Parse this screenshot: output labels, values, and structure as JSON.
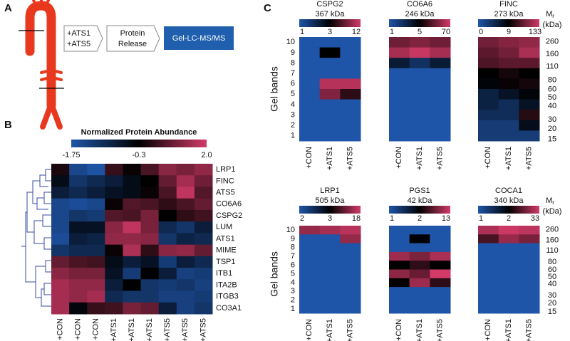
{
  "panel_labels": [
    "A",
    "B",
    "C"
  ],
  "panel_a": {
    "treatment": [
      "+ATS1",
      "+ATS5"
    ],
    "step": [
      "Protein",
      "Release"
    ],
    "method": "Gel-LC-MS/MS"
  },
  "panel_b": {
    "title": "Normalized Protein Abundance",
    "ticks": [
      -1.75,
      -0.3,
      {
        "value": 2,
        "label": "2.0"
      }
    ],
    "rows": [
      "LRP1",
      "FINC",
      "ATS5",
      "CO6A6",
      "CSPG2",
      "LUM",
      "ATS1",
      "MIME",
      "TSP1",
      "ITB1",
      "ITA2B",
      "ITGB3",
      "CO3A1"
    ],
    "columns": [
      "+CON",
      "+CON",
      "+CON",
      "+ATS1",
      "+ATS1",
      "+ATS1",
      "+ATS5",
      "+ATS5",
      "+ATS5"
    ],
    "values": [
      [
        0,
        -1.5,
        -1.7,
        0.3,
        -0.2,
        0.5,
        1.2,
        1.0,
        1.3
      ],
      [
        -0.5,
        -1.2,
        -1.0,
        -0.8,
        -0.5,
        -0.3,
        0.8,
        1.5,
        0.9
      ],
      [
        -0.8,
        -1.0,
        -0.8,
        -0.6,
        -0.5,
        -0.2,
        0.5,
        1.8,
        0.6
      ],
      [
        -1.5,
        -1.6,
        -1.5,
        -0.2,
        0.6,
        0.5,
        0.2,
        0.5,
        0.8
      ],
      [
        -1.5,
        -1.2,
        -1.3,
        0.6,
        0.5,
        1.0,
        -0.3,
        0.2,
        0.4
      ],
      [
        -1.5,
        -0.6,
        -0.6,
        1.2,
        1.8,
        1.0,
        -1.0,
        -1.2,
        -0.8
      ],
      [
        -1.6,
        -0.8,
        -0.9,
        1.3,
        1.3,
        1.2,
        -1.2,
        -0.9,
        -1.0
      ],
      [
        -1.2,
        -1.0,
        -1.0,
        -0.2,
        1.6,
        0.2,
        1.2,
        1.3,
        0.8
      ],
      [
        0.8,
        0.5,
        0.4,
        -0.5,
        -0.8,
        -0.6,
        -1.3,
        -0.8,
        -1.0
      ],
      [
        1.2,
        1.0,
        1.0,
        -0.6,
        -1.3,
        -0.3,
        -0.8,
        -1.4,
        -1.3
      ],
      [
        1.5,
        1.3,
        1.3,
        -0.8,
        -0.3,
        -1.2,
        -1.3,
        -1.2,
        -1.4
      ],
      [
        1.5,
        1.3,
        1.5,
        -1.0,
        -1.2,
        -1.2,
        -1.4,
        -1.4,
        -1.3
      ],
      [
        1.5,
        -0.4,
        0.3,
        0.4,
        1.0,
        0.8,
        -0.8,
        -1.4,
        -1.2
      ]
    ]
  },
  "panel_c": {
    "y_label": "Gel bands",
    "bands": [
      10,
      9,
      8,
      7,
      6,
      5,
      4,
      3,
      2,
      1
    ],
    "mr_label": "M",
    "mr_sub": "r",
    "mr_unit": "(kDa)",
    "mr": [
      260,
      160,
      110,
      80,
      60,
      50,
      40,
      30,
      20,
      15
    ],
    "columns": [
      "+CON",
      "+ATS1",
      "+ATS5"
    ],
    "proteins": [
      {
        "name": "CSPG2",
        "mass": "367 kDa",
        "ticks": [
          1,
          3,
          12
        ],
        "values": [
          [
            1,
            1,
            1
          ],
          [
            1,
            3,
            1
          ],
          [
            1,
            1,
            1
          ],
          [
            1,
            1,
            1
          ],
          [
            1,
            10,
            10
          ],
          [
            1,
            7,
            4
          ],
          [
            1,
            1,
            1
          ],
          [
            1,
            1,
            1
          ],
          [
            1,
            1,
            1
          ],
          [
            1,
            1,
            1
          ]
        ]
      },
      {
        "name": "CO6A6",
        "mass": "246 kDa",
        "ticks": [
          1,
          5,
          70
        ],
        "values": [
          [
            20,
            25,
            20
          ],
          [
            40,
            60,
            40
          ],
          [
            3,
            2,
            3
          ],
          [
            1,
            1,
            1
          ],
          [
            1,
            1,
            1
          ],
          [
            1,
            1,
            1
          ],
          [
            1,
            1,
            1
          ],
          [
            1,
            1,
            1
          ],
          [
            1,
            1,
            1
          ],
          [
            1,
            1,
            1
          ]
        ]
      },
      {
        "name": "FINC",
        "mass": "273 kDa",
        "ticks": [
          0,
          9,
          133
        ],
        "values": [
          [
            40,
            50,
            60
          ],
          [
            30,
            40,
            80
          ],
          [
            25,
            30,
            30
          ],
          [
            9,
            12,
            9
          ],
          [
            8,
            10,
            12
          ],
          [
            3,
            5,
            8
          ],
          [
            3,
            2,
            5
          ],
          [
            2,
            2,
            15
          ],
          [
            1,
            1,
            6
          ],
          [
            1,
            1,
            1
          ]
        ]
      },
      {
        "name": "LRP1",
        "mass": "505 kDa",
        "ticks": [
          2,
          3,
          18
        ],
        "values": [
          [
            10,
            12,
            14
          ],
          [
            2,
            2,
            10
          ],
          [
            2,
            2,
            2
          ],
          [
            2,
            2,
            2
          ],
          [
            2,
            2,
            2
          ],
          [
            2,
            2,
            2
          ],
          [
            2,
            2,
            2
          ],
          [
            2,
            2,
            2
          ],
          [
            2,
            2,
            2
          ],
          [
            2,
            2,
            2
          ]
        ]
      },
      {
        "name": "PGS1",
        "mass": "42 kDa",
        "ticks": [
          1,
          2,
          13
        ],
        "values": [
          [
            1,
            1,
            1
          ],
          [
            1,
            2,
            1
          ],
          [
            1,
            1,
            1
          ],
          [
            8,
            6,
            9
          ],
          [
            2,
            3,
            2
          ],
          [
            7,
            5,
            13
          ],
          [
            2,
            8,
            3
          ],
          [
            1,
            1,
            1
          ],
          [
            1,
            1,
            1
          ],
          [
            1,
            1,
            1
          ]
        ]
      },
      {
        "name": "COCA1",
        "mass": "340 kDa",
        "ticks": [
          1,
          2,
          33
        ],
        "values": [
          [
            20,
            30,
            25
          ],
          [
            5,
            15,
            10
          ],
          [
            1,
            1,
            1
          ],
          [
            1,
            1,
            1
          ],
          [
            1,
            1,
            1
          ],
          [
            1,
            1,
            1
          ],
          [
            1,
            1,
            1
          ],
          [
            1,
            1,
            1
          ],
          [
            1,
            1,
            1
          ],
          [
            1,
            1,
            1
          ]
        ]
      }
    ]
  }
}
